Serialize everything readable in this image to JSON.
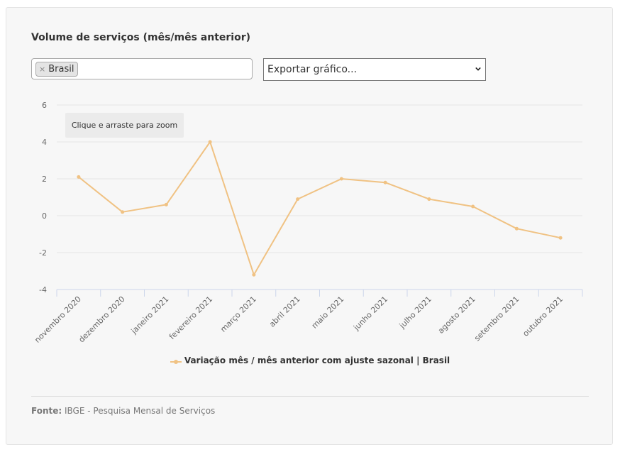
{
  "header": {
    "title": "Volume de serviços (mês/mês anterior)"
  },
  "filter": {
    "chip_label": "Brasil",
    "remove_symbol": "×"
  },
  "export_select": {
    "selected": "Exportar gráfico..."
  },
  "zoom_hint": "Clique e arraste para zoom",
  "footer": {
    "source_label": "Fonte:",
    "source_text": "IBGE - Pesquisa Mensal de Serviços"
  },
  "colors": {
    "series": "#f0c283",
    "grid": "#e6e6e6",
    "axis": "#ccd6eb"
  },
  "chart_data": {
    "type": "line",
    "categories": [
      "novembro 2020",
      "dezembro 2020",
      "janeiro 2021",
      "fevereiro 2021",
      "março 2021",
      "abril 2021",
      "maio 2021",
      "junho 2021",
      "julho 2021",
      "agosto 2021",
      "setembro 2021",
      "outubro 2021"
    ],
    "series": [
      {
        "name": "Variação mês / mês anterior com ajuste sazonal | Brasil",
        "values": [
          2.1,
          0.2,
          0.6,
          4.0,
          -3.2,
          0.9,
          2.0,
          1.8,
          0.9,
          0.5,
          -0.7,
          -1.2
        ]
      }
    ],
    "yticks": [
      6,
      4,
      2,
      0,
      -2,
      -4
    ],
    "ylim": [
      -4,
      6
    ],
    "grid": true,
    "legend_position": "bottom-center"
  }
}
